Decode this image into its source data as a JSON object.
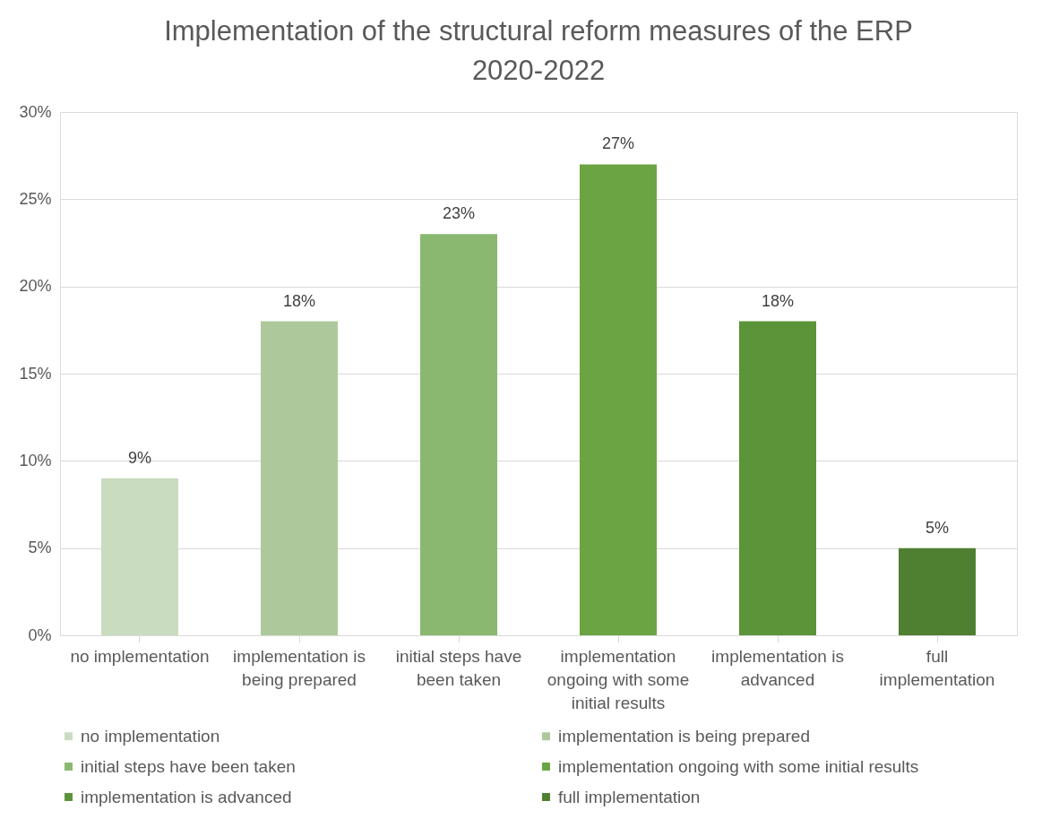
{
  "chart_data": {
    "type": "bar",
    "title": [
      "Implementation of the structural reform measures of the ERP",
      "2020-2022"
    ],
    "categories": [
      "no implementation",
      "implementation is being prepared",
      "initial steps have been taken",
      "implementation ongoing with some initial results",
      "implementation is advanced",
      "full implementation"
    ],
    "series": [
      {
        "name": "no implementation",
        "color": "#c9dcc0",
        "values": [
          9,
          null,
          null,
          null,
          null,
          null
        ],
        "value_labels": [
          "9%",
          null,
          null,
          null,
          null,
          null
        ]
      },
      {
        "name": "implementation is being prepared",
        "color": "#adc99c",
        "values": [
          null,
          18,
          null,
          null,
          null,
          null
        ],
        "value_labels": [
          null,
          "18%",
          null,
          null,
          null,
          null
        ]
      },
      {
        "name": "initial steps have been taken",
        "color": "#8ab870",
        "values": [
          null,
          null,
          23,
          null,
          null,
          null
        ],
        "value_labels": [
          null,
          null,
          "23%",
          null,
          null,
          null
        ]
      },
      {
        "name": "implementation ongoing with some initial results",
        "color": "#6aa443",
        "values": [
          null,
          null,
          null,
          27,
          null,
          null
        ],
        "value_labels": [
          null,
          null,
          null,
          "27%",
          null,
          null
        ]
      },
      {
        "name": "implementation is advanced",
        "color": "#5b9439",
        "values": [
          null,
          null,
          null,
          null,
          18,
          null
        ],
        "value_labels": [
          null,
          null,
          null,
          null,
          "18%",
          null
        ]
      },
      {
        "name": "full implementation",
        "color": "#4f7f30",
        "values": [
          null,
          null,
          null,
          null,
          null,
          5
        ],
        "value_labels": [
          null,
          null,
          null,
          null,
          null,
          "5%"
        ]
      }
    ],
    "ylim": [
      0,
      30
    ],
    "yticks": [
      {
        "value": 0,
        "label": "0%"
      },
      {
        "value": 5,
        "label": "5%"
      },
      {
        "value": 10,
        "label": "10%"
      },
      {
        "value": 15,
        "label": "15%"
      },
      {
        "value": 20,
        "label": "20%"
      },
      {
        "value": 25,
        "label": "25%"
      },
      {
        "value": 30,
        "label": "30%"
      }
    ],
    "grid": "y",
    "legend": "bottom"
  }
}
